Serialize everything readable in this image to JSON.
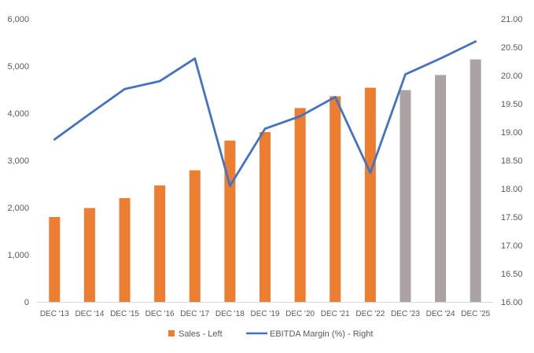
{
  "chart_data": {
    "type": "bar",
    "categories": [
      "DEC '13",
      "DEC '14",
      "DEC '15",
      "DEC '16",
      "DEC '17",
      "DEC '18",
      "DEC '19",
      "DEC '20",
      "DEC '21",
      "DEC '22",
      "DEC '23",
      "DEC '24",
      "DEC '25"
    ],
    "series": [
      {
        "name": "Sales - Left",
        "type": "bar",
        "axis": "left",
        "values": [
          1800,
          1990,
          2200,
          2470,
          2790,
          3420,
          3600,
          4110,
          4360,
          4540,
          4490,
          4810,
          5140
        ],
        "forecast_from_index": 10
      },
      {
        "name": "EBITDA Margin (%) - Right",
        "type": "line",
        "axis": "right",
        "values": [
          18.87,
          19.32,
          19.76,
          19.9,
          20.3,
          18.05,
          19.06,
          19.28,
          19.62,
          18.28,
          20.02,
          20.3,
          20.6
        ]
      }
    ],
    "y_left": {
      "ylim": [
        0,
        6000
      ],
      "ticks": [
        "0",
        "1,000",
        "2,000",
        "3,000",
        "4,000",
        "5,000",
        "6,000"
      ]
    },
    "y_right": {
      "ylim": [
        16.0,
        21.0
      ],
      "ticks": [
        "16.00",
        "16.50",
        "17.00",
        "17.50",
        "18.00",
        "18.50",
        "19.00",
        "19.50",
        "20.00",
        "20.50",
        "21.00"
      ]
    },
    "title": "",
    "xlabel": "",
    "ylabel": "",
    "grid": false,
    "legend_position": "bottom",
    "colors": {
      "actual_bar": "#ED7D31",
      "forecast_bar": "#ABA3A3",
      "line": "#4472C4",
      "axis": "#D9D9D9",
      "text": "#595959"
    }
  }
}
